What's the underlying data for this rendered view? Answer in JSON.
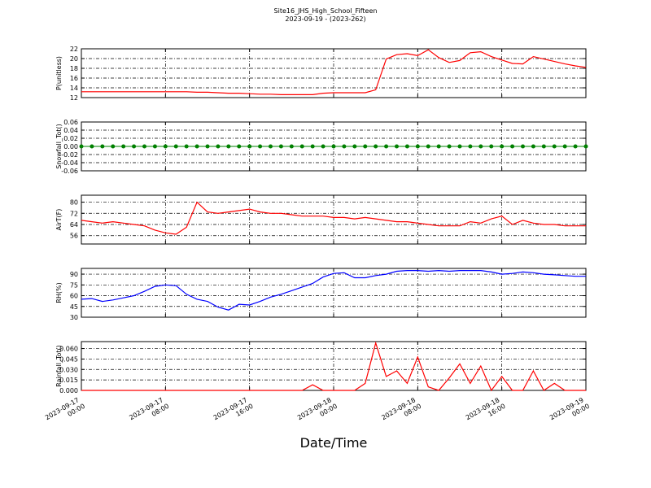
{
  "title": "Site16_JHS_High_School_Fifteen",
  "subtitle": "2023-09-19 - (2023-262)",
  "xlabel": "Date/Time",
  "x": [
    "2023-09-17 00:00",
    "2023-09-17 01:00",
    "2023-09-17 02:00",
    "2023-09-17 03:00",
    "2023-09-17 04:00",
    "2023-09-17 05:00",
    "2023-09-17 06:00",
    "2023-09-17 07:00",
    "2023-09-17 08:00",
    "2023-09-17 09:00",
    "2023-09-17 10:00",
    "2023-09-17 11:00",
    "2023-09-17 12:00",
    "2023-09-17 13:00",
    "2023-09-17 14:00",
    "2023-09-17 15:00",
    "2023-09-17 16:00",
    "2023-09-17 17:00",
    "2023-09-17 18:00",
    "2023-09-17 19:00",
    "2023-09-17 20:00",
    "2023-09-17 21:00",
    "2023-09-17 22:00",
    "2023-09-17 23:00",
    "2023-09-18 00:00",
    "2023-09-18 01:00",
    "2023-09-18 02:00",
    "2023-09-18 03:00",
    "2023-09-18 04:00",
    "2023-09-18 05:00",
    "2023-09-18 06:00",
    "2023-09-18 07:00",
    "2023-09-18 08:00",
    "2023-09-18 09:00",
    "2023-09-18 10:00",
    "2023-09-18 11:00",
    "2023-09-18 12:00",
    "2023-09-18 13:00",
    "2023-09-18 14:00",
    "2023-09-18 15:00",
    "2023-09-18 16:00",
    "2023-09-18 17:00",
    "2023-09-18 18:00",
    "2023-09-18 19:00",
    "2023-09-18 20:00",
    "2023-09-18 21:00",
    "2023-09-18 22:00",
    "2023-09-18 23:00",
    "2023-09-19 00:00"
  ],
  "xlim": [
    "2023-09-17 00:00",
    "2023-09-19 00:00"
  ],
  "xticks": [
    "2023-09-17 00:00",
    "2023-09-17 08:00",
    "2023-09-17 16:00",
    "2023-09-18 00:00",
    "2023-09-18 08:00",
    "2023-09-18 16:00",
    "2023-09-19 00:00"
  ],
  "chart_data": [
    {
      "type": "line",
      "ylabel": "P(unitless)",
      "color": "#ff0000",
      "grid": true,
      "ylim": [
        12,
        22
      ],
      "yticks": [
        12,
        14,
        16,
        18,
        20,
        22
      ],
      "values": [
        13.2,
        13.2,
        13.2,
        13.2,
        13.2,
        13.2,
        13.2,
        13.2,
        13.2,
        13.2,
        13.2,
        13.1,
        13.1,
        13.0,
        12.9,
        12.9,
        12.8,
        12.7,
        12.7,
        12.6,
        12.6,
        12.6,
        12.6,
        12.9,
        13.0,
        13.0,
        13.0,
        13.0,
        13.6,
        19.9,
        20.8,
        21.0,
        20.6,
        21.8,
        20.2,
        19.2,
        19.6,
        21.2,
        21.4,
        20.4,
        19.7,
        19.0,
        18.9,
        20.4,
        19.9,
        19.4,
        18.9,
        18.5,
        18.2
      ]
    },
    {
      "type": "line",
      "ylabel": "Snowfall_Tot()",
      "color": "#008000",
      "marker": true,
      "grid": true,
      "ylim": [
        -0.06,
        0.06
      ],
      "yticks": [
        {
          "value": -0.06,
          "label": "-0.06"
        },
        {
          "value": -0.04,
          "label": "-0.04"
        },
        {
          "value": -0.02,
          "label": "-0.02"
        },
        {
          "value": 0,
          "label": "0.00"
        },
        {
          "value": 0.02,
          "label": "0.02"
        },
        {
          "value": 0.04,
          "label": "0.04"
        },
        {
          "value": 0.06,
          "label": "0.06"
        }
      ],
      "values": [
        0,
        0,
        0,
        0,
        0,
        0,
        0,
        0,
        0,
        0,
        0,
        0,
        0,
        0,
        0,
        0,
        0,
        0,
        0,
        0,
        0,
        0,
        0,
        0,
        0,
        0,
        0,
        0,
        0,
        0,
        0,
        0,
        0,
        0,
        0,
        0,
        0,
        0,
        0,
        0,
        0,
        0,
        0,
        0,
        0,
        0,
        0,
        0,
        0
      ]
    },
    {
      "type": "line",
      "ylabel": "AirT(F)",
      "color": "#ff0000",
      "grid": true,
      "ylim": [
        50,
        85
      ],
      "yticks": [
        56,
        64,
        72,
        80
      ],
      "values": [
        67,
        66,
        65,
        66,
        65,
        64,
        63,
        60,
        58,
        57,
        62,
        80,
        73,
        72,
        73,
        74,
        75,
        73,
        72,
        72,
        71,
        70,
        70,
        70,
        69,
        69,
        68,
        69,
        68,
        67,
        66,
        66,
        65,
        64,
        63,
        63,
        63,
        66,
        65,
        68,
        70,
        64,
        67,
        65,
        64,
        64,
        63,
        63,
        63
      ]
    },
    {
      "type": "line",
      "ylabel": "RH(%)",
      "color": "#0000ff",
      "grid": true,
      "ylim": [
        30,
        98
      ],
      "yticks": [
        30,
        45,
        60,
        75,
        90
      ],
      "values": [
        55,
        56,
        52,
        54,
        57,
        60,
        66,
        73,
        75,
        74,
        62,
        55,
        52,
        44,
        40,
        48,
        47,
        52,
        58,
        62,
        67,
        72,
        77,
        86,
        91,
        92,
        85,
        85,
        88,
        90,
        94,
        95,
        95,
        94,
        95,
        94,
        95,
        95,
        95,
        93,
        90,
        91,
        93,
        92,
        90,
        89,
        88,
        87,
        87
      ]
    },
    {
      "type": "line",
      "ylabel": "Rainfall_Tot()",
      "color": "#ff0000",
      "grid": true,
      "ylim": [
        0,
        0.07
      ],
      "yticks": [
        {
          "value": 0,
          "label": "0.000"
        },
        {
          "value": 0.015,
          "label": "0.015"
        },
        {
          "value": 0.03,
          "label": "0.030"
        },
        {
          "value": 0.045,
          "label": "0.045"
        },
        {
          "value": 0.06,
          "label": "0.060"
        }
      ],
      "values": [
        0,
        0,
        0,
        0,
        0,
        0,
        0,
        0,
        0,
        0,
        0,
        0,
        0,
        0,
        0,
        0,
        0,
        0,
        0,
        0,
        0,
        0,
        0.008,
        0,
        0,
        0,
        0,
        0.01,
        0.068,
        0.02,
        0.028,
        0.01,
        0.048,
        0.005,
        0,
        0.018,
        0.038,
        0.01,
        0.035,
        0,
        0.02,
        0,
        0,
        0.028,
        0,
        0.01,
        0,
        0,
        0
      ]
    }
  ]
}
